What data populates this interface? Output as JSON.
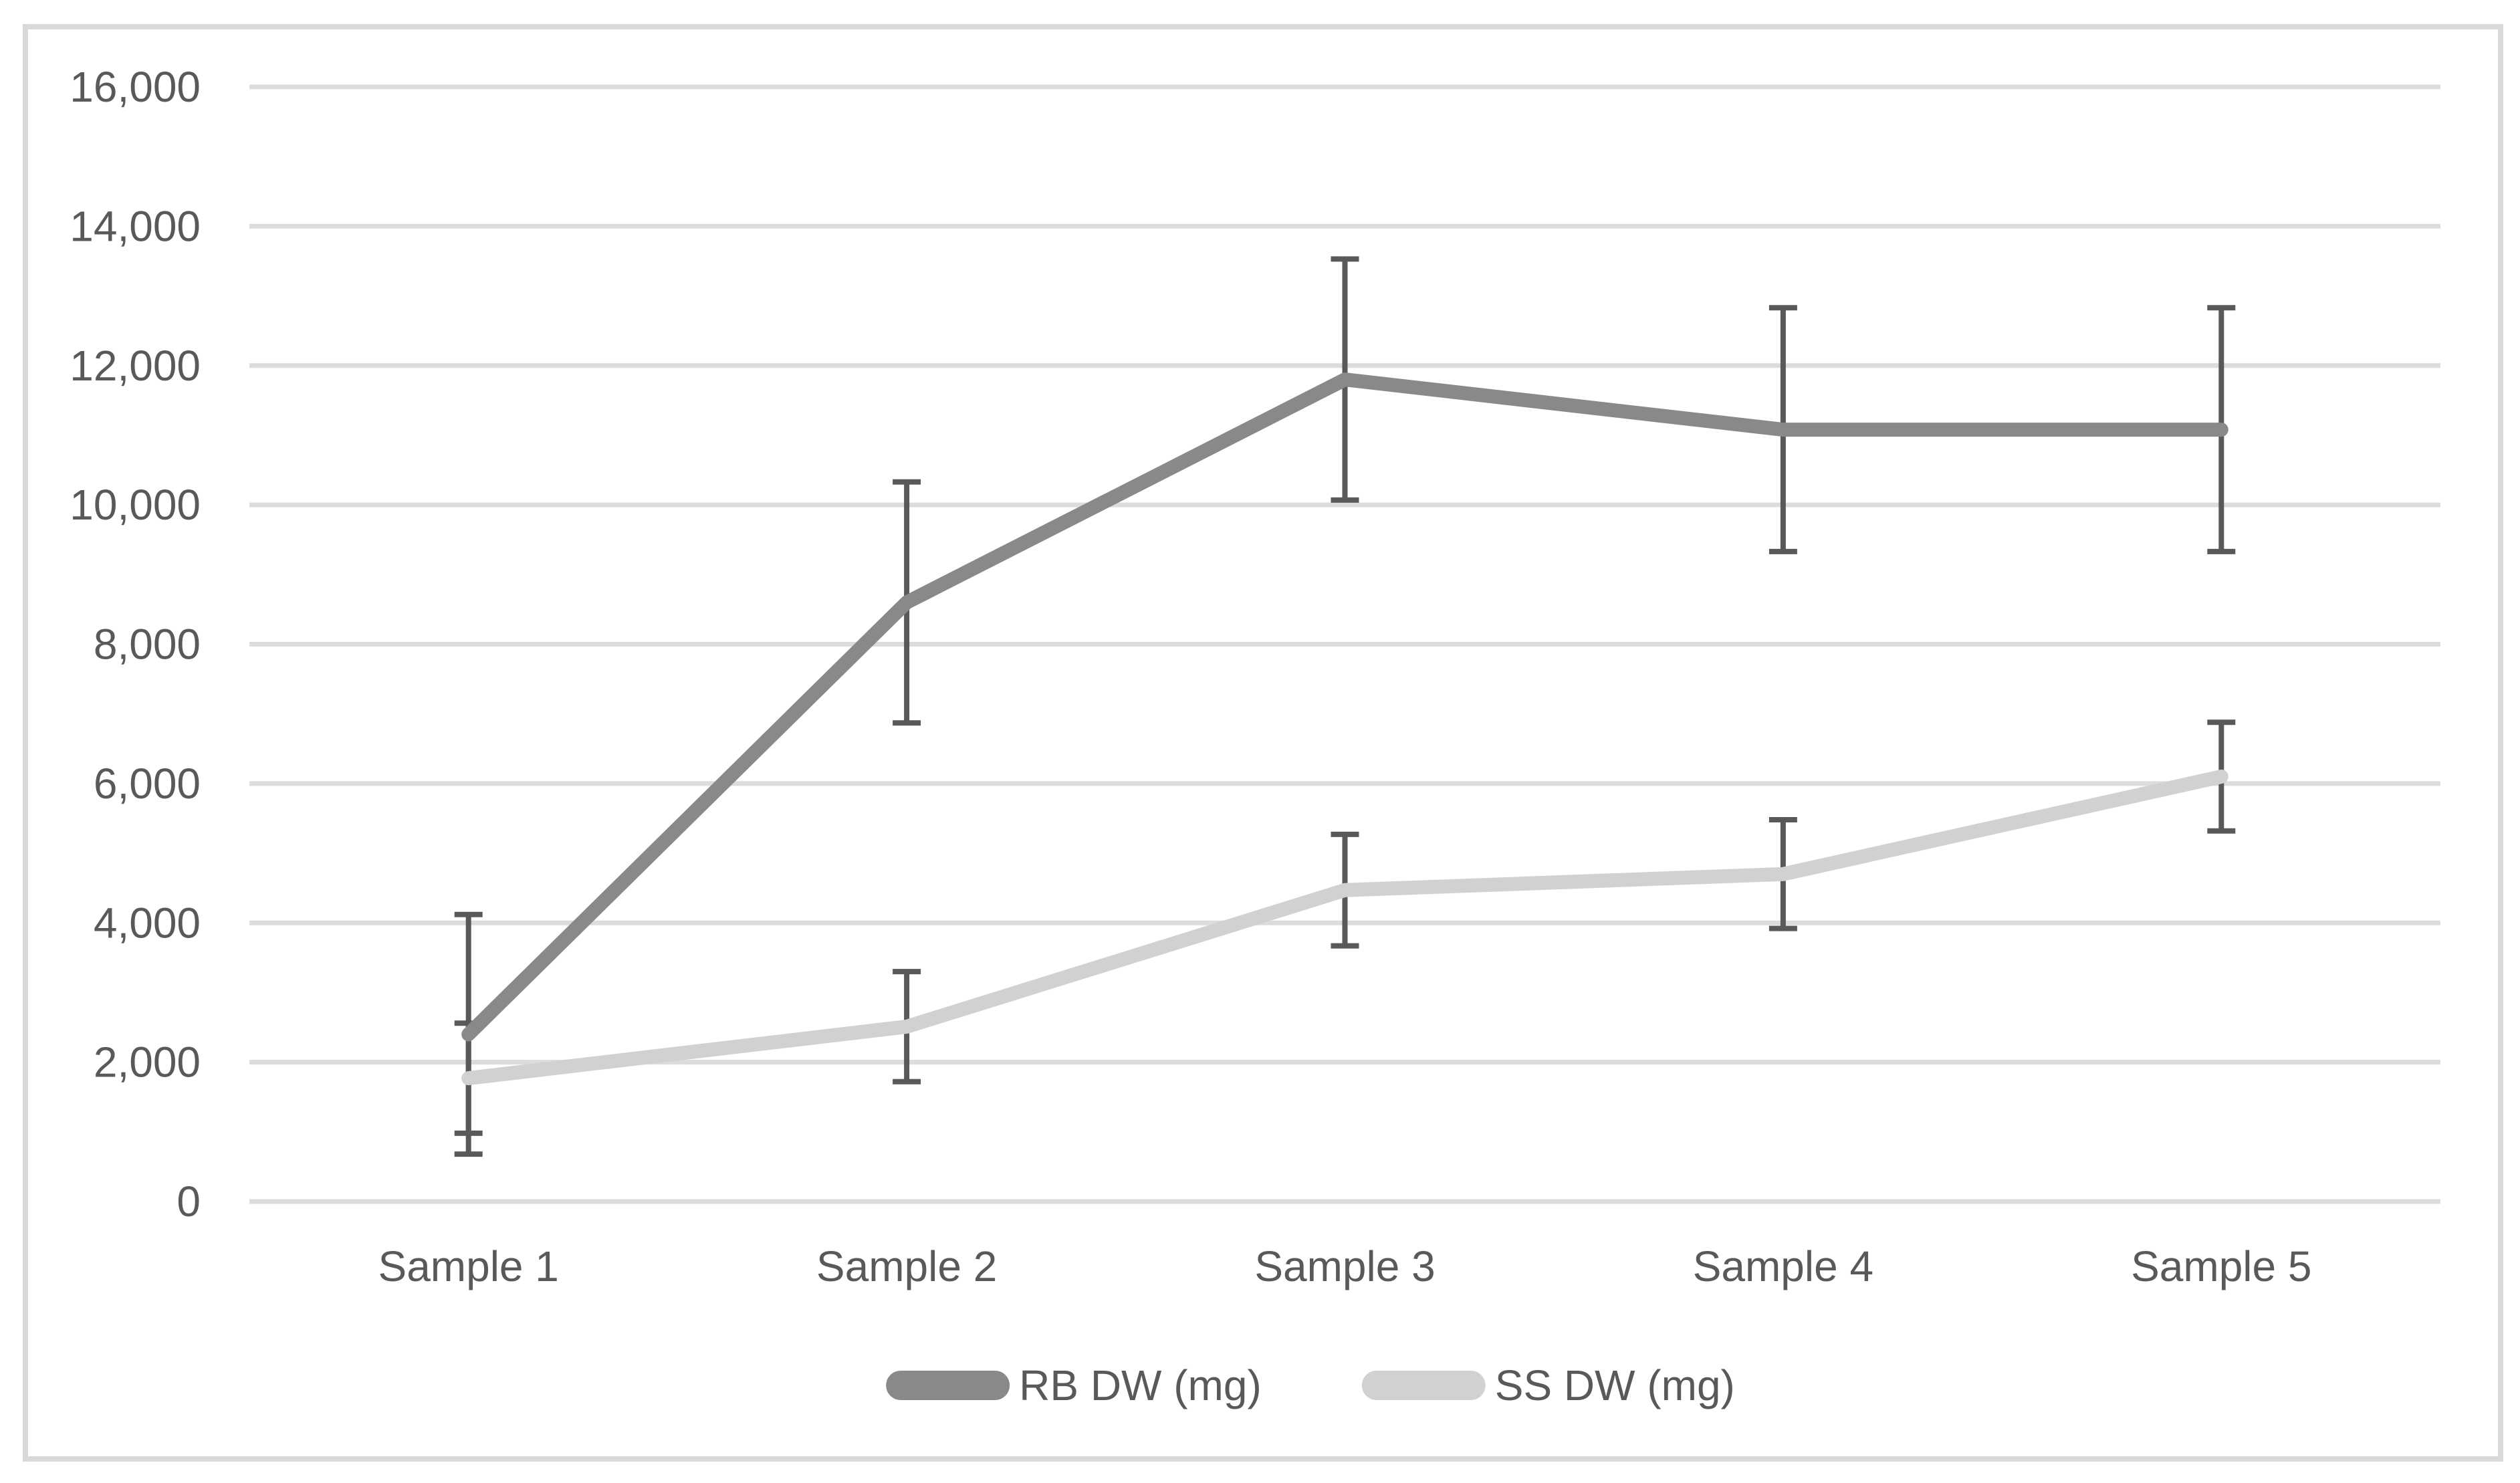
{
  "chart_data": {
    "type": "line",
    "title": "",
    "categories": [
      "Sample 1",
      "Sample 2",
      "Sample 3",
      "Sample 4",
      "Sample 5"
    ],
    "series": [
      {
        "name": "RB DW (mg)",
        "color": "#898989",
        "values": [
          2400,
          8600,
          11800,
          11080,
          11080
        ],
        "error_bars": [
          1720,
          1730,
          1730,
          1750,
          1750
        ]
      },
      {
        "name": "SS DW (mg)",
        "color": "#D1D1D1",
        "values": [
          1770,
          2510,
          4470,
          4700,
          6100
        ],
        "error_bars": [
          790,
          790,
          800,
          780,
          780
        ]
      }
    ],
    "y_axis": {
      "min": 0,
      "max": 16000,
      "step": 2000,
      "tick_labels": [
        "0",
        "2,000",
        "4,000",
        "6,000",
        "8,000",
        "10,000",
        "12,000",
        "14,000",
        "16,000"
      ]
    },
    "x_axis": {
      "tick_labels": [
        "Sample 1",
        "Sample 2",
        "Sample 3",
        "Sample 4",
        "Sample 5"
      ]
    },
    "grid": "horizontal",
    "legend_position": "bottom-center",
    "colors": {
      "error_bar": "#595959",
      "gridline": "#DCDCDC",
      "chart_border": "#D9D9D9",
      "text": "#595959",
      "background": "#FFFFFF"
    }
  }
}
